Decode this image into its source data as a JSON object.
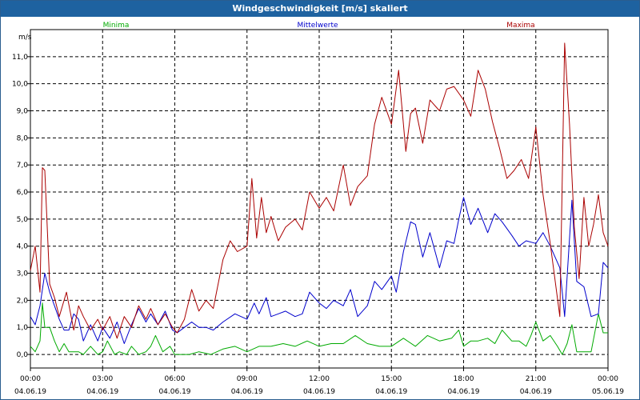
{
  "window_title": "Windgeschwindigkeit [m/s] skaliert",
  "chart_data": {
    "type": "line",
    "title": "Windgeschwindigkeit [m/s] skaliert",
    "ylabel": "m/s",
    "xlabel": "",
    "ylim": [
      -0.5,
      12.0
    ],
    "xlim": [
      0,
      24
    ],
    "grid": true,
    "y_ticks": [
      "0,0",
      "1,0",
      "2,0",
      "3,0",
      "4,0",
      "5,0",
      "6,0",
      "7,0",
      "8,0",
      "9,0",
      "10,0",
      "11,0"
    ],
    "x_ticks": [
      {
        "time": "00:00",
        "date": "04.06.19"
      },
      {
        "time": "03:00",
        "date": "04.06.19"
      },
      {
        "time": "06:00",
        "date": "04.06.19"
      },
      {
        "time": "09:00",
        "date": "04.06.19"
      },
      {
        "time": "12:00",
        "date": "04.06.19"
      },
      {
        "time": "15:00",
        "date": "04.06.19"
      },
      {
        "time": "18:00",
        "date": "04.06.19"
      },
      {
        "time": "21:00",
        "date": "04.06.19"
      },
      {
        "time": "00:00",
        "date": "05.06.19"
      }
    ],
    "series": [
      {
        "name": "Minima",
        "color": "#00aa00",
        "x": [
          0,
          0.2,
          0.4,
          0.5,
          0.6,
          0.8,
          1.0,
          1.2,
          1.4,
          1.6,
          1.8,
          2.0,
          2.2,
          2.5,
          2.8,
          3.0,
          3.2,
          3.5,
          3.7,
          4.0,
          4.2,
          4.5,
          4.8,
          5.0,
          5.2,
          5.5,
          5.8,
          6.0,
          6.3,
          6.6,
          7.0,
          7.5,
          8.0,
          8.5,
          9.0,
          9.5,
          10.0,
          10.5,
          11.0,
          11.5,
          12.0,
          12.5,
          13.0,
          13.5,
          14.0,
          14.5,
          15.0,
          15.5,
          16.0,
          16.5,
          17.0,
          17.5,
          17.8,
          18.0,
          18.3,
          18.6,
          19.0,
          19.3,
          19.6,
          20.0,
          20.3,
          20.6,
          20.8,
          21.0,
          21.3,
          21.6,
          21.9,
          22.1,
          22.3,
          22.5,
          22.7,
          23.0,
          23.3,
          23.6,
          23.8,
          24.0
        ],
        "y": [
          0.3,
          0.1,
          0.5,
          1.9,
          1.0,
          1.0,
          0.5,
          0.1,
          0.4,
          0.1,
          0.1,
          0.1,
          0.0,
          0.3,
          0.0,
          0.1,
          0.5,
          0.0,
          0.1,
          0.0,
          0.3,
          0.0,
          0.1,
          0.3,
          0.7,
          0.1,
          0.3,
          0.0,
          0.0,
          0.0,
          0.1,
          0.0,
          0.2,
          0.3,
          0.1,
          0.3,
          0.3,
          0.4,
          0.3,
          0.5,
          0.3,
          0.4,
          0.4,
          0.7,
          0.4,
          0.3,
          0.3,
          0.6,
          0.3,
          0.7,
          0.5,
          0.6,
          0.9,
          0.3,
          0.5,
          0.5,
          0.6,
          0.4,
          0.9,
          0.5,
          0.5,
          0.3,
          0.7,
          1.2,
          0.5,
          0.7,
          0.3,
          0.0,
          0.4,
          1.1,
          0.1,
          0.1,
          0.1,
          1.5,
          0.8,
          0.8
        ]
      },
      {
        "name": "Mittelwerte",
        "color": "#0000cc",
        "x": [
          0,
          0.2,
          0.4,
          0.6,
          0.8,
          1.0,
          1.2,
          1.4,
          1.6,
          1.8,
          2.0,
          2.2,
          2.5,
          2.8,
          3.0,
          3.3,
          3.6,
          3.9,
          4.2,
          4.5,
          4.8,
          5.0,
          5.3,
          5.6,
          5.9,
          6.1,
          6.4,
          6.7,
          7.0,
          7.3,
          7.6,
          8.0,
          8.5,
          9.0,
          9.3,
          9.5,
          9.8,
          10.0,
          10.3,
          10.6,
          11.0,
          11.3,
          11.6,
          12.0,
          12.3,
          12.6,
          13.0,
          13.3,
          13.6,
          14.0,
          14.3,
          14.6,
          15.0,
          15.2,
          15.5,
          15.8,
          16.0,
          16.3,
          16.6,
          17.0,
          17.3,
          17.6,
          17.8,
          18.0,
          18.3,
          18.6,
          19.0,
          19.3,
          19.6,
          20.0,
          20.3,
          20.6,
          21.0,
          21.3,
          21.6,
          22.0,
          22.2,
          22.5,
          22.7,
          23.0,
          23.3,
          23.6,
          23.8,
          24.0
        ],
        "y": [
          1.4,
          1.1,
          1.8,
          3.0,
          2.3,
          1.8,
          1.3,
          0.9,
          0.9,
          1.5,
          1.3,
          0.5,
          1.1,
          0.5,
          1.0,
          0.6,
          1.2,
          0.4,
          1.1,
          1.7,
          1.2,
          1.5,
          1.1,
          1.6,
          0.9,
          0.8,
          1.0,
          1.2,
          1.0,
          1.0,
          0.9,
          1.2,
          1.5,
          1.3,
          1.9,
          1.5,
          2.1,
          1.4,
          1.5,
          1.6,
          1.4,
          1.5,
          2.3,
          1.9,
          1.7,
          2.0,
          1.8,
          2.4,
          1.4,
          1.8,
          2.7,
          2.4,
          2.9,
          2.3,
          3.8,
          4.9,
          4.8,
          3.6,
          4.5,
          3.2,
          4.2,
          4.1,
          5.0,
          5.8,
          4.8,
          5.4,
          4.5,
          5.2,
          4.9,
          4.4,
          4.0,
          4.2,
          4.1,
          4.5,
          4.0,
          3.2,
          1.4,
          5.7,
          2.7,
          2.5,
          1.4,
          1.5,
          3.4,
          3.2
        ]
      },
      {
        "name": "Maxima",
        "color": "#aa0000",
        "x": [
          0,
          0.2,
          0.4,
          0.5,
          0.6,
          0.8,
          1.0,
          1.2,
          1.5,
          1.8,
          2.0,
          2.2,
          2.5,
          2.8,
          3.0,
          3.3,
          3.6,
          3.9,
          4.2,
          4.5,
          4.8,
          5.0,
          5.3,
          5.6,
          5.9,
          6.1,
          6.4,
          6.7,
          7.0,
          7.3,
          7.6,
          8.0,
          8.3,
          8.6,
          9.0,
          9.2,
          9.4,
          9.6,
          9.8,
          10.0,
          10.3,
          10.6,
          11.0,
          11.3,
          11.6,
          12.0,
          12.3,
          12.6,
          13.0,
          13.3,
          13.6,
          14.0,
          14.3,
          14.6,
          15.0,
          15.3,
          15.6,
          15.8,
          16.0,
          16.3,
          16.6,
          17.0,
          17.3,
          17.6,
          18.0,
          18.3,
          18.6,
          18.9,
          19.2,
          19.5,
          19.8,
          20.1,
          20.4,
          20.7,
          21.0,
          21.3,
          21.6,
          22.0,
          22.2,
          22.4,
          22.6,
          22.8,
          23.0,
          23.2,
          23.4,
          23.6,
          23.8,
          24.0
        ],
        "y": [
          3.1,
          4.0,
          2.3,
          6.9,
          6.8,
          2.6,
          2.1,
          1.4,
          2.3,
          0.9,
          1.8,
          1.4,
          0.9,
          1.3,
          0.9,
          1.4,
          0.6,
          1.4,
          1.0,
          1.8,
          1.3,
          1.7,
          1.1,
          1.5,
          1.0,
          0.8,
          1.3,
          2.4,
          1.6,
          2.0,
          1.7,
          3.5,
          4.2,
          3.8,
          4.0,
          6.5,
          4.3,
          5.8,
          4.5,
          5.1,
          4.2,
          4.7,
          5.0,
          4.6,
          6.0,
          5.4,
          5.8,
          5.3,
          7.0,
          5.5,
          6.2,
          6.6,
          8.5,
          9.5,
          8.5,
          10.5,
          7.5,
          8.9,
          9.1,
          7.8,
          9.4,
          9.0,
          9.8,
          9.9,
          9.4,
          8.8,
          10.5,
          9.8,
          8.6,
          7.6,
          6.5,
          6.8,
          7.2,
          6.5,
          8.4,
          5.9,
          4.1,
          1.4,
          11.5,
          8.5,
          4.7,
          2.8,
          5.8,
          4.0,
          4.8,
          5.9,
          4.5,
          4.0
        ]
      }
    ]
  }
}
